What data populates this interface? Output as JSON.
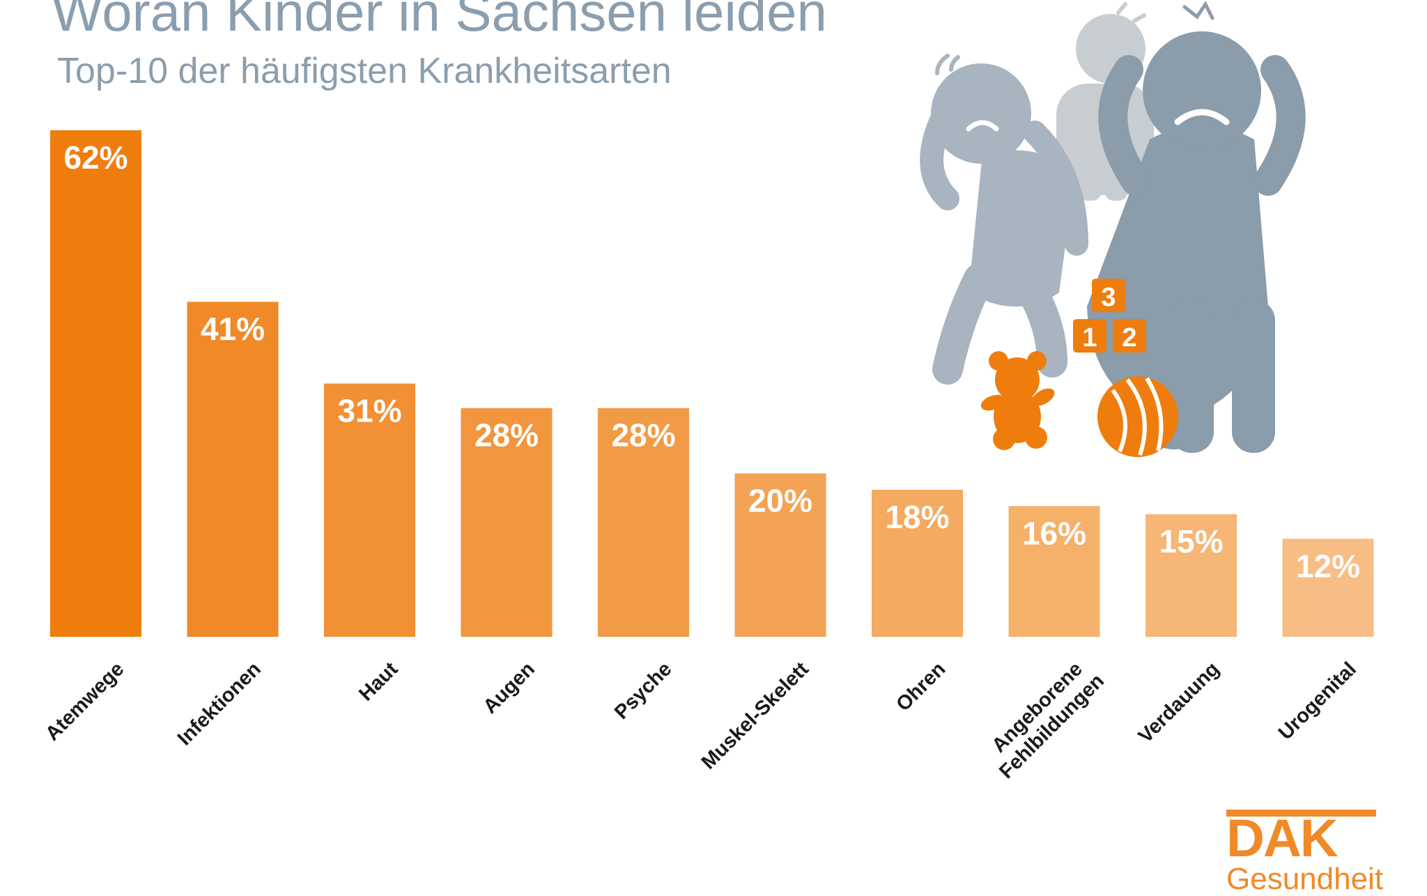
{
  "chart_data": {
    "type": "bar",
    "title": "Woran Kinder in Sachsen leiden",
    "subtitle": "Top-10 der häufigsten Krankheitsarten",
    "categories": [
      "Atemwege",
      "Infektionen",
      "Haut",
      "Augen",
      "Psyche",
      "Muskel-Skelett",
      "Ohren",
      "Angeborene Fehlbildungen",
      "Verdauung",
      "Urogenital"
    ],
    "category_lines": [
      [
        "Atemwege"
      ],
      [
        "Infektionen"
      ],
      [
        "Haut"
      ],
      [
        "Augen"
      ],
      [
        "Psyche"
      ],
      [
        "Muskel-Skelett"
      ],
      [
        "Ohren"
      ],
      [
        "Angeborene",
        "Fehlbildungen"
      ],
      [
        "Verdauung"
      ],
      [
        "Urogenital"
      ]
    ],
    "values": [
      62,
      41,
      31,
      28,
      28,
      20,
      18,
      16,
      15,
      12
    ],
    "value_labels": [
      "62%",
      "41%",
      "31%",
      "28%",
      "28%",
      "20%",
      "18%",
      "16%",
      "15%",
      "12%"
    ],
    "unit": "%",
    "ylim": [
      0,
      62
    ],
    "grid": false,
    "legend": "none",
    "bar_colors": [
      "#ef7d0d",
      "#f08a28",
      "#f19035",
      "#f1963f",
      "#f29b47",
      "#f3a353",
      "#f4aa60",
      "#f5b06a",
      "#f5b676",
      "#f7bd84"
    ]
  },
  "illustration": {
    "blocks": [
      "3",
      "1",
      "2"
    ],
    "icons": [
      "sick-child-icon",
      "stomach-ache-child-icon",
      "headache-child-icon",
      "teddy-bear-icon",
      "number-blocks-icon",
      "ball-icon"
    ],
    "colors": {
      "orange": "#ef7d0d",
      "grey_dark": "#8b9cab",
      "grey_light": "#a8b4bf",
      "grey_back": "#c8cdd2"
    }
  },
  "logo": {
    "mark": "DAK",
    "text": "Gesundheit"
  },
  "colors": {
    "title": "#8b9eae",
    "label": "#1a1a1a",
    "value": "#ffffff"
  }
}
